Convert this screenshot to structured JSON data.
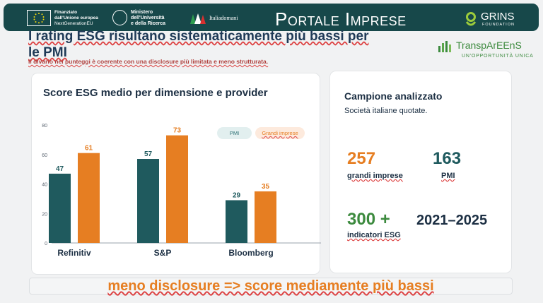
{
  "header": {
    "eu_line1": "Finanziato",
    "eu_line2": "dall'Unione europea",
    "eu_line3": "NextGenerationEU",
    "ministry_line1": "Ministero",
    "ministry_line2": "dell'Università",
    "ministry_line3": "e della Ricerca",
    "italia_label": "Italiadomani",
    "portal_title": "Portale Imprese",
    "grins_name": "GRINS",
    "grins_sub": "FOUNDATION"
  },
  "slide": {
    "title": "I rating ESG risultano sistematicamente più bassi per le PMI",
    "subtitle": "Il divario nei punteggi è coerente con una disclosure più limitata e meno strutturata."
  },
  "brand": {
    "name": "TranspArEEnS",
    "tagline": "UN'OPPORTUNITÀ UNICA"
  },
  "chart_data": {
    "type": "bar",
    "title": "Score ESG medio per dimensione e provider",
    "categories": [
      "Refinitiv",
      "S&P",
      "Bloomberg"
    ],
    "series": [
      {
        "name": "PMI",
        "values": [
          47,
          57,
          29
        ],
        "color": "#1f5a5e"
      },
      {
        "name": "Grandi imprese",
        "values": [
          61,
          73,
          35
        ],
        "color": "#e67e22"
      }
    ],
    "ylim": [
      0,
      80
    ],
    "yticks": [
      0,
      20,
      40,
      60,
      80
    ],
    "legend": "top-right",
    "grid": false
  },
  "sample": {
    "title": "Campione analizzato",
    "subtitle": "Società italiane quotate.",
    "stats": [
      {
        "value": "257",
        "label": "grandi imprese"
      },
      {
        "value": "163",
        "label": "PMI"
      },
      {
        "value": "300 +",
        "label": "indicatori ESG"
      },
      {
        "value": "2021–2025",
        "label": ""
      }
    ]
  },
  "banner": {
    "text": "meno disclosure => score mediamente più bassi"
  },
  "colors": {
    "header_bg": "#17484a",
    "teal": "#1f5a5e",
    "orange": "#e67e22",
    "green": "#3c8a3e"
  }
}
